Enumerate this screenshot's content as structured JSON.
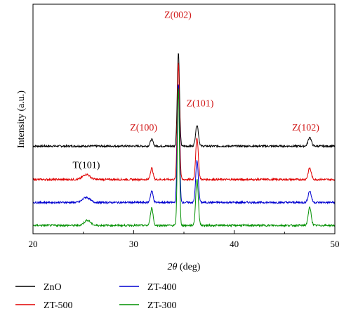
{
  "chart_data": {
    "type": "line",
    "xlabel_italic": "2θ",
    "xlabel_unit": " (deg)",
    "ylabel": "Intensity (a.u.)",
    "xlim": [
      20,
      50
    ],
    "x_ticks": [
      "20",
      "30",
      "40",
      "50"
    ],
    "x_tick_values": [
      20,
      30,
      40,
      50
    ],
    "y_ticks": "none",
    "grid": false,
    "legend_position": "bottom",
    "series": [
      {
        "name": "ZnO",
        "color": "#000000",
        "baseline": 4.2,
        "peaks": [
          {
            "x": 31.8,
            "h": 0.32,
            "w": 0.14
          },
          {
            "x": 34.45,
            "h": 4.5,
            "w": 0.11
          },
          {
            "x": 36.3,
            "h": 1.02,
            "w": 0.14
          },
          {
            "x": 47.5,
            "h": 0.42,
            "w": 0.16
          }
        ]
      },
      {
        "name": "ZT-500",
        "color": "#e00000",
        "baseline": 2.6,
        "peaks": [
          {
            "x": 25.3,
            "h": 0.25,
            "w": 0.35
          },
          {
            "x": 31.8,
            "h": 0.55,
            "w": 0.13
          },
          {
            "x": 34.45,
            "h": 5.6,
            "w": 0.11
          },
          {
            "x": 36.3,
            "h": 2.0,
            "w": 0.13
          },
          {
            "x": 47.5,
            "h": 0.55,
            "w": 0.15
          }
        ]
      },
      {
        "name": "ZT-400",
        "color": "#0000d0",
        "baseline": 1.5,
        "peaks": [
          {
            "x": 25.3,
            "h": 0.25,
            "w": 0.35
          },
          {
            "x": 31.8,
            "h": 0.55,
            "w": 0.13
          },
          {
            "x": 34.45,
            "h": 5.7,
            "w": 0.11
          },
          {
            "x": 36.3,
            "h": 2.0,
            "w": 0.13
          },
          {
            "x": 47.5,
            "h": 0.55,
            "w": 0.15
          }
        ]
      },
      {
        "name": "ZT-300",
        "color": "#009000",
        "baseline": 0.4,
        "peaks": [
          {
            "x": 25.4,
            "h": 0.25,
            "w": 0.3
          },
          {
            "x": 31.8,
            "h": 0.85,
            "w": 0.13
          },
          {
            "x": 34.45,
            "h": 6.6,
            "w": 0.1
          },
          {
            "x": 36.3,
            "h": 2.2,
            "w": 0.13
          },
          {
            "x": 47.5,
            "h": 0.85,
            "w": 0.15
          }
        ]
      }
    ],
    "annotations": [
      {
        "text": "Z(002)",
        "color": "#d11a1a",
        "x": 34.4,
        "y": 10.35
      },
      {
        "text": "Z(101)",
        "color": "#d11a1a",
        "x": 36.6,
        "y": 6.1
      },
      {
        "text": "Z(100)",
        "color": "#d11a1a",
        "x": 31.0,
        "y": 4.95
      },
      {
        "text": "Z(102)",
        "color": "#d11a1a",
        "x": 47.1,
        "y": 4.95
      },
      {
        "text": "T(101)",
        "color": "#000000",
        "x": 25.3,
        "y": 3.15
      }
    ]
  },
  "legend": {
    "items": [
      {
        "label": "ZnO",
        "color": "#000000"
      },
      {
        "label": "ZT-500",
        "color": "#e00000"
      },
      {
        "label": "ZT-400",
        "color": "#0000d0"
      },
      {
        "label": "ZT-300",
        "color": "#009000"
      }
    ]
  }
}
